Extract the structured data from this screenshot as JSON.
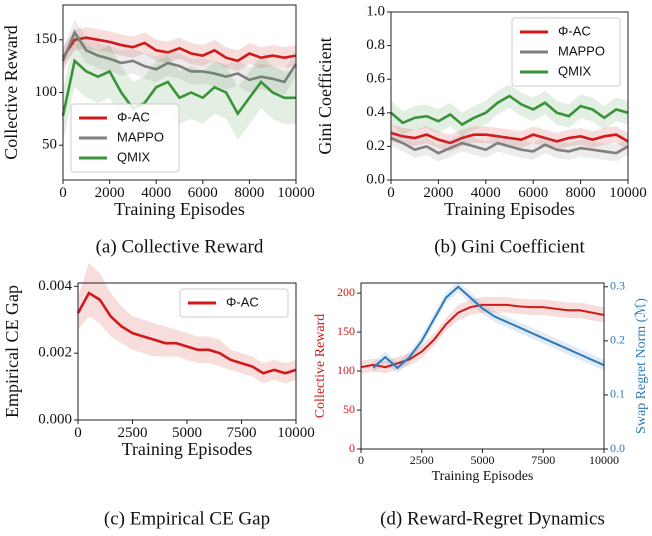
{
  "chart_data": [
    {
      "type": "line",
      "caption": "(a) Collective Reward",
      "xlabel": "Training Episodes",
      "ylabel": "Collective Reward",
      "x": [
        0,
        500,
        1000,
        1500,
        2000,
        2500,
        3000,
        3500,
        4000,
        4500,
        5000,
        5500,
        6000,
        6500,
        7000,
        7500,
        8000,
        8500,
        9000,
        9500,
        10000
      ],
      "xlim": [
        0,
        10000
      ],
      "xticks": [
        0,
        2000,
        4000,
        6000,
        8000,
        10000
      ],
      "ylim": [
        17,
        183
      ],
      "yticks": [
        50,
        100,
        150
      ],
      "legend": "lower left",
      "grid": false,
      "series": [
        {
          "name": "Φ-AC",
          "color": "#d11919",
          "values": [
            133,
            150,
            152,
            150,
            148,
            145,
            143,
            147,
            140,
            138,
            142,
            137,
            135,
            140,
            133,
            130,
            137,
            133,
            135,
            133,
            135
          ],
          "lower": [
            123,
            140,
            142,
            140,
            138,
            135,
            133,
            137,
            130,
            128,
            132,
            127,
            125,
            130,
            123,
            120,
            127,
            123,
            125,
            123,
            125
          ],
          "upper": [
            143,
            160,
            162,
            160,
            158,
            155,
            153,
            157,
            150,
            148,
            152,
            147,
            145,
            150,
            143,
            140,
            147,
            143,
            145,
            143,
            145
          ]
        },
        {
          "name": "MAPPO",
          "color": "#7f7f7f",
          "values": [
            130,
            157,
            140,
            135,
            132,
            128,
            130,
            125,
            122,
            128,
            125,
            120,
            120,
            118,
            115,
            118,
            112,
            115,
            113,
            110,
            127
          ],
          "lower": [
            118,
            145,
            128,
            123,
            120,
            116,
            118,
            113,
            110,
            116,
            113,
            108,
            108,
            106,
            103,
            106,
            100,
            103,
            101,
            98,
            115
          ],
          "upper": [
            142,
            169,
            152,
            147,
            144,
            140,
            142,
            137,
            134,
            140,
            137,
            132,
            132,
            130,
            127,
            130,
            124,
            127,
            125,
            122,
            139
          ]
        },
        {
          "name": "QMIX",
          "color": "#3a923a",
          "values": [
            78,
            130,
            120,
            115,
            120,
            100,
            85,
            90,
            105,
            110,
            95,
            100,
            95,
            105,
            100,
            80,
            95,
            110,
            100,
            95,
            95
          ],
          "lower": [
            53,
            105,
            95,
            90,
            95,
            75,
            60,
            65,
            80,
            85,
            70,
            75,
            70,
            80,
            75,
            55,
            70,
            85,
            75,
            70,
            70
          ],
          "upper": [
            103,
            155,
            145,
            140,
            145,
            125,
            110,
            115,
            130,
            135,
            120,
            125,
            120,
            130,
            125,
            105,
            120,
            135,
            125,
            120,
            120
          ]
        }
      ]
    },
    {
      "type": "line",
      "caption": "(b) Gini Coefficient",
      "xlabel": "Training Episodes",
      "ylabel": "Gini Coefficient",
      "x": [
        0,
        500,
        1000,
        1500,
        2000,
        2500,
        3000,
        3500,
        4000,
        4500,
        5000,
        5500,
        6000,
        6500,
        7000,
        7500,
        8000,
        8500,
        9000,
        9500,
        10000
      ],
      "xlim": [
        0,
        10000
      ],
      "xticks": [
        0,
        2000,
        4000,
        6000,
        8000,
        10000
      ],
      "ylim": [
        0,
        1
      ],
      "yticks": [
        {
          "value": 0,
          "label": "0.0"
        },
        0.2,
        0.4,
        0.6,
        0.8,
        {
          "value": 1,
          "label": "1.0"
        }
      ],
      "legend": "upper right",
      "grid": false,
      "series": [
        {
          "name": "Φ-AC",
          "color": "#d11919",
          "values": [
            0.28,
            0.26,
            0.25,
            0.27,
            0.24,
            0.22,
            0.25,
            0.27,
            0.27,
            0.26,
            0.25,
            0.24,
            0.27,
            0.25,
            0.23,
            0.25,
            0.26,
            0.24,
            0.26,
            0.27,
            0.23
          ],
          "lower": [
            0.23,
            0.21,
            0.2,
            0.22,
            0.19,
            0.17,
            0.2,
            0.22,
            0.22,
            0.21,
            0.2,
            0.19,
            0.22,
            0.2,
            0.18,
            0.2,
            0.21,
            0.19,
            0.21,
            0.22,
            0.18
          ],
          "upper": [
            0.33,
            0.31,
            0.3,
            0.32,
            0.29,
            0.27,
            0.3,
            0.32,
            0.32,
            0.31,
            0.3,
            0.29,
            0.32,
            0.3,
            0.28,
            0.3,
            0.31,
            0.29,
            0.31,
            0.32,
            0.28
          ]
        },
        {
          "name": "MAPPO",
          "color": "#7f7f7f",
          "values": [
            0.25,
            0.22,
            0.18,
            0.2,
            0.16,
            0.19,
            0.22,
            0.2,
            0.18,
            0.22,
            0.2,
            0.18,
            0.17,
            0.21,
            0.18,
            0.17,
            0.19,
            0.18,
            0.17,
            0.16,
            0.2
          ],
          "lower": [
            0.2,
            0.17,
            0.13,
            0.15,
            0.11,
            0.14,
            0.17,
            0.15,
            0.13,
            0.17,
            0.15,
            0.13,
            0.12,
            0.16,
            0.13,
            0.12,
            0.14,
            0.13,
            0.12,
            0.11,
            0.15
          ],
          "upper": [
            0.3,
            0.27,
            0.23,
            0.25,
            0.21,
            0.24,
            0.27,
            0.25,
            0.23,
            0.27,
            0.25,
            0.23,
            0.22,
            0.26,
            0.23,
            0.22,
            0.24,
            0.23,
            0.22,
            0.21,
            0.25
          ]
        },
        {
          "name": "QMIX",
          "color": "#3a923a",
          "values": [
            0.4,
            0.34,
            0.37,
            0.38,
            0.35,
            0.39,
            0.33,
            0.37,
            0.4,
            0.46,
            0.5,
            0.45,
            0.42,
            0.46,
            0.4,
            0.38,
            0.44,
            0.42,
            0.37,
            0.42,
            0.4
          ],
          "lower": [
            0.33,
            0.27,
            0.3,
            0.31,
            0.28,
            0.32,
            0.26,
            0.3,
            0.33,
            0.39,
            0.43,
            0.38,
            0.35,
            0.39,
            0.33,
            0.31,
            0.37,
            0.35,
            0.3,
            0.35,
            0.33
          ],
          "upper": [
            0.47,
            0.41,
            0.44,
            0.45,
            0.42,
            0.46,
            0.4,
            0.44,
            0.47,
            0.53,
            0.57,
            0.52,
            0.49,
            0.53,
            0.47,
            0.45,
            0.51,
            0.49,
            0.44,
            0.49,
            0.47
          ]
        }
      ]
    },
    {
      "type": "line",
      "caption": "(c) Empirical CE Gap",
      "xlabel": "Training Episodes",
      "ylabel": "Empirical CE Gap",
      "x": [
        0,
        500,
        1000,
        1500,
        2000,
        2500,
        3000,
        3500,
        4000,
        4500,
        5000,
        5500,
        6000,
        6500,
        7000,
        7500,
        8000,
        8500,
        9000,
        9500,
        10000
      ],
      "xlim": [
        0,
        10000
      ],
      "xticks": [
        0,
        2500,
        5000,
        7500,
        10000
      ],
      "ylim": [
        0,
        0.0041
      ],
      "yticks": [
        {
          "value": 0,
          "label": "0.000"
        },
        {
          "value": 0.002,
          "label": "0.002"
        },
        {
          "value": 0.004,
          "label": "0.004"
        }
      ],
      "legend": "upper right",
      "grid": false,
      "series": [
        {
          "name": "Φ-AC",
          "color": "#d11919",
          "values": [
            0.0032,
            0.0038,
            0.0036,
            0.0031,
            0.0028,
            0.0026,
            0.0025,
            0.0024,
            0.0023,
            0.0023,
            0.0022,
            0.0021,
            0.0021,
            0.002,
            0.0018,
            0.0017,
            0.0016,
            0.0014,
            0.0015,
            0.0014,
            0.0015
          ],
          "lower": [
            0.0027,
            0.0031,
            0.0029,
            0.0025,
            0.0023,
            0.0021,
            0.002,
            0.0019,
            0.0019,
            0.0019,
            0.0018,
            0.0017,
            0.0017,
            0.0016,
            0.0015,
            0.0014,
            0.0013,
            0.0011,
            0.0012,
            0.0011,
            0.0012
          ],
          "upper": [
            0.0037,
            0.0047,
            0.0044,
            0.0038,
            0.0034,
            0.0031,
            0.003,
            0.0029,
            0.0028,
            0.0027,
            0.0026,
            0.0025,
            0.0025,
            0.0024,
            0.0021,
            0.002,
            0.0019,
            0.0017,
            0.0018,
            0.0017,
            0.0018
          ]
        }
      ]
    },
    {
      "type": "line",
      "caption": "(d) Reward-Regret Dynamics",
      "xlabel": "Training Episodes",
      "ylabel": "Collective Reward",
      "y2label": "Swap Regret Norm (ℳ)",
      "x": [
        0,
        500,
        1000,
        1500,
        2000,
        2500,
        3000,
        3500,
        4000,
        4500,
        5000,
        5500,
        6000,
        6500,
        7000,
        7500,
        8000,
        8500,
        9000,
        9500,
        10000
      ],
      "xlim": [
        0,
        10000
      ],
      "xticks": [
        0,
        2500,
        5000,
        7500,
        10000
      ],
      "ylim": [
        0,
        213
      ],
      "yticks": [
        0,
        50,
        100,
        150,
        200
      ],
      "y2lim": [
        0,
        0.307
      ],
      "y2ticks": [
        {
          "value": 0,
          "label": "0.0"
        },
        0.1,
        0.2,
        0.3
      ],
      "grid": false,
      "series": [
        {
          "name": "Collective Reward",
          "color": "#d11919",
          "values": [
            105,
            108,
            105,
            110,
            115,
            125,
            140,
            160,
            175,
            182,
            185,
            185,
            185,
            183,
            182,
            182,
            180,
            178,
            178,
            175,
            172
          ],
          "lower": [
            97,
            100,
            97,
            102,
            107,
            117,
            132,
            152,
            165,
            172,
            175,
            175,
            175,
            173,
            172,
            172,
            170,
            168,
            168,
            165,
            162
          ],
          "upper": [
            113,
            116,
            113,
            118,
            123,
            133,
            148,
            168,
            185,
            192,
            195,
            195,
            195,
            193,
            192,
            192,
            190,
            188,
            188,
            185,
            182
          ]
        },
        {
          "name": "Swap Regret Norm (ℳ)",
          "color": "#2e7ab8",
          "axis": "y2",
          "values": [
            null,
            0.15,
            0.17,
            0.15,
            0.17,
            0.2,
            0.24,
            0.28,
            0.3,
            0.28,
            0.26,
            0.245,
            0.235,
            0.225,
            0.215,
            0.205,
            0.195,
            0.185,
            0.175,
            0.165,
            0.155
          ],
          "lower": [
            null,
            0.14,
            0.16,
            0.14,
            0.16,
            0.19,
            0.23,
            0.27,
            0.29,
            0.27,
            0.25,
            0.235,
            0.225,
            0.215,
            0.205,
            0.195,
            0.185,
            0.175,
            0.165,
            0.155,
            0.145
          ],
          "upper": [
            null,
            0.16,
            0.18,
            0.16,
            0.18,
            0.21,
            0.25,
            0.29,
            0.31,
            0.29,
            0.27,
            0.255,
            0.245,
            0.235,
            0.225,
            0.215,
            0.205,
            0.195,
            0.185,
            0.175,
            0.165
          ]
        }
      ]
    }
  ]
}
